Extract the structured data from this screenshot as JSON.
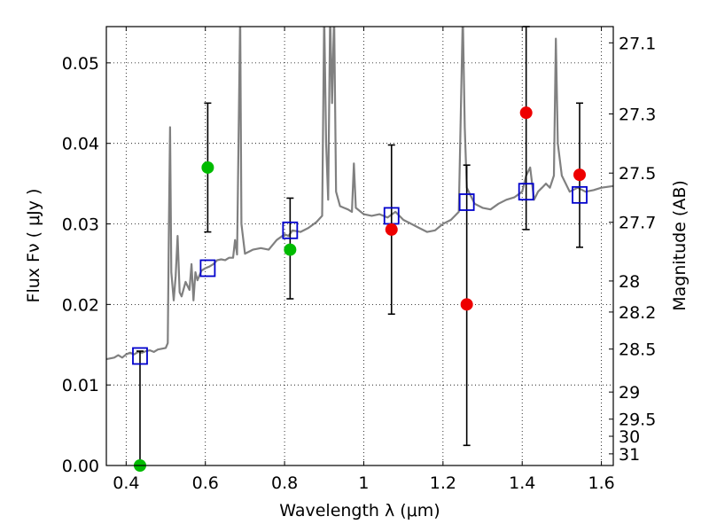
{
  "chart_data": {
    "type": "scatter",
    "xlabel": "Wavelength  λ (μm)",
    "ylabel": "Flux  Fν  ( μJy )",
    "y2label": "Magnitude (AB)",
    "xlim": [
      0.35,
      1.63
    ],
    "ylim": [
      0.0,
      0.0545
    ],
    "grid": true,
    "x_ticks": [
      {
        "value": 0.4,
        "label": "0.4"
      },
      {
        "value": 0.6,
        "label": "0.6"
      },
      {
        "value": 0.8,
        "label": "0.8"
      },
      {
        "value": 1.0,
        "label": "1"
      },
      {
        "value": 1.2,
        "label": "1.2"
      },
      {
        "value": 1.4,
        "label": "1.4"
      },
      {
        "value": 1.6,
        "label": "1.6"
      }
    ],
    "y_ticks": [
      {
        "value": 0.0,
        "label": "0.00"
      },
      {
        "value": 0.01,
        "label": "0.01"
      },
      {
        "value": 0.02,
        "label": "0.02"
      },
      {
        "value": 0.03,
        "label": "0.03"
      },
      {
        "value": 0.04,
        "label": "0.04"
      },
      {
        "value": 0.05,
        "label": "0.05"
      }
    ],
    "y2_ticks": [
      {
        "mag": 27.1,
        "label": "27.1"
      },
      {
        "mag": 27.3,
        "label": "27.3"
      },
      {
        "mag": 27.5,
        "label": "27.5"
      },
      {
        "mag": 27.7,
        "label": "27.7"
      },
      {
        "mag": 28.0,
        "label": "28"
      },
      {
        "mag": 28.2,
        "label": "28.2"
      },
      {
        "mag": 28.5,
        "label": "28.5"
      },
      {
        "mag": 29.0,
        "label": "29"
      },
      {
        "mag": 29.5,
        "label": "29.5"
      },
      {
        "mag": 30.0,
        "label": "30"
      },
      {
        "mag": 31.0,
        "label": "31"
      }
    ],
    "colors": {
      "spectrum": "#808080",
      "model": "#0000cc",
      "green": "#00bb00",
      "red": "#ee0000",
      "errorbar": "#000000"
    },
    "spectrum": [
      [
        0.35,
        0.0132
      ],
      [
        0.36,
        0.0133
      ],
      [
        0.37,
        0.0134
      ],
      [
        0.38,
        0.0137
      ],
      [
        0.39,
        0.0134
      ],
      [
        0.4,
        0.0138
      ],
      [
        0.41,
        0.014
      ],
      [
        0.42,
        0.0138
      ],
      [
        0.43,
        0.0141
      ],
      [
        0.44,
        0.014
      ],
      [
        0.45,
        0.0142
      ],
      [
        0.46,
        0.0143
      ],
      [
        0.47,
        0.0141
      ],
      [
        0.48,
        0.0144
      ],
      [
        0.49,
        0.0145
      ],
      [
        0.5,
        0.0146
      ],
      [
        0.505,
        0.0152
      ],
      [
        0.508,
        0.03
      ],
      [
        0.511,
        0.042
      ],
      [
        0.514,
        0.024
      ],
      [
        0.52,
        0.0205
      ],
      [
        0.525,
        0.0235
      ],
      [
        0.53,
        0.0285
      ],
      [
        0.535,
        0.0215
      ],
      [
        0.54,
        0.021
      ],
      [
        0.55,
        0.0228
      ],
      [
        0.56,
        0.0218
      ],
      [
        0.565,
        0.025
      ],
      [
        0.57,
        0.0205
      ],
      [
        0.575,
        0.024
      ],
      [
        0.58,
        0.023
      ],
      [
        0.59,
        0.0242
      ],
      [
        0.6,
        0.0245
      ],
      [
        0.61,
        0.0247
      ],
      [
        0.62,
        0.025
      ],
      [
        0.63,
        0.0255
      ],
      [
        0.64,
        0.0256
      ],
      [
        0.65,
        0.0255
      ],
      [
        0.66,
        0.0258
      ],
      [
        0.67,
        0.0258
      ],
      [
        0.675,
        0.028
      ],
      [
        0.68,
        0.0262
      ],
      [
        0.685,
        0.045
      ],
      [
        0.688,
        0.056
      ],
      [
        0.691,
        0.03
      ],
      [
        0.7,
        0.0263
      ],
      [
        0.72,
        0.0268
      ],
      [
        0.74,
        0.027
      ],
      [
        0.76,
        0.0268
      ],
      [
        0.78,
        0.028
      ],
      [
        0.8,
        0.0287
      ],
      [
        0.81,
        0.0285
      ],
      [
        0.82,
        0.0292
      ],
      [
        0.84,
        0.029
      ],
      [
        0.86,
        0.0295
      ],
      [
        0.88,
        0.0302
      ],
      [
        0.895,
        0.031
      ],
      [
        0.9,
        0.056
      ],
      [
        0.905,
        0.04
      ],
      [
        0.91,
        0.033
      ],
      [
        0.915,
        0.056
      ],
      [
        0.92,
        0.045
      ],
      [
        0.925,
        0.056
      ],
      [
        0.93,
        0.034
      ],
      [
        0.94,
        0.0322
      ],
      [
        0.95,
        0.032
      ],
      [
        0.96,
        0.0318
      ],
      [
        0.97,
        0.0315
      ],
      [
        0.975,
        0.0375
      ],
      [
        0.98,
        0.032
      ],
      [
        1.0,
        0.0312
      ],
      [
        1.02,
        0.031
      ],
      [
        1.04,
        0.0312
      ],
      [
        1.06,
        0.0308
      ],
      [
        1.08,
        0.0315
      ],
      [
        1.1,
        0.0305
      ],
      [
        1.12,
        0.03
      ],
      [
        1.14,
        0.0295
      ],
      [
        1.16,
        0.029
      ],
      [
        1.18,
        0.0292
      ],
      [
        1.2,
        0.03
      ],
      [
        1.22,
        0.0305
      ],
      [
        1.24,
        0.0315
      ],
      [
        1.25,
        0.056
      ],
      [
        1.255,
        0.042
      ],
      [
        1.26,
        0.0345
      ],
      [
        1.28,
        0.0325
      ],
      [
        1.3,
        0.032
      ],
      [
        1.32,
        0.0318
      ],
      [
        1.34,
        0.0325
      ],
      [
        1.36,
        0.033
      ],
      [
        1.38,
        0.0333
      ],
      [
        1.4,
        0.034
      ],
      [
        1.41,
        0.036
      ],
      [
        1.42,
        0.037
      ],
      [
        1.43,
        0.033
      ],
      [
        1.44,
        0.034
      ],
      [
        1.45,
        0.0345
      ],
      [
        1.46,
        0.035
      ],
      [
        1.47,
        0.0345
      ],
      [
        1.48,
        0.036
      ],
      [
        1.485,
        0.053
      ],
      [
        1.49,
        0.04
      ],
      [
        1.5,
        0.036
      ],
      [
        1.52,
        0.034
      ],
      [
        1.54,
        0.0345
      ],
      [
        1.56,
        0.034
      ],
      [
        1.58,
        0.0342
      ],
      [
        1.6,
        0.0345
      ],
      [
        1.63,
        0.0347
      ]
    ],
    "model_points": [
      {
        "x": 0.435,
        "y": 0.0136
      },
      {
        "x": 0.606,
        "y": 0.0245
      },
      {
        "x": 0.814,
        "y": 0.0292
      },
      {
        "x": 1.07,
        "y": 0.031
      },
      {
        "x": 1.26,
        "y": 0.0327
      },
      {
        "x": 1.41,
        "y": 0.034
      },
      {
        "x": 1.545,
        "y": 0.0336
      }
    ],
    "observed_points": [
      {
        "x": 0.435,
        "y": 0.0,
        "err_low": 0.0,
        "err_high": 0.0142,
        "color": "green"
      },
      {
        "x": 0.606,
        "y": 0.037,
        "err_low": 0.029,
        "err_high": 0.045,
        "color": "green"
      },
      {
        "x": 0.814,
        "y": 0.0268,
        "err_low": 0.0207,
        "err_high": 0.0332,
        "color": "green"
      },
      {
        "x": 1.07,
        "y": 0.0293,
        "err_low": 0.0188,
        "err_high": 0.0398,
        "color": "red"
      },
      {
        "x": 1.26,
        "y": 0.02,
        "err_low": 0.0025,
        "err_high": 0.0373,
        "color": "red"
      },
      {
        "x": 1.41,
        "y": 0.0438,
        "err_low": 0.0293,
        "err_high": 0.0555,
        "color": "red"
      },
      {
        "x": 1.545,
        "y": 0.0361,
        "err_low": 0.0271,
        "err_high": 0.045,
        "color": "red"
      }
    ]
  }
}
